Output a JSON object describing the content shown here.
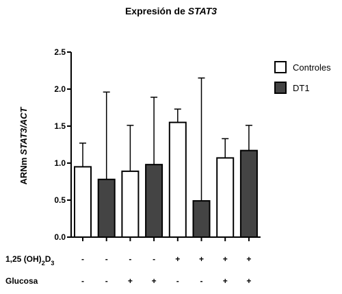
{
  "chart_data": {
    "type": "bar",
    "title": {
      "prefix": "Expresión de ",
      "gene": "STAT3"
    },
    "ylabel": {
      "prefix": "ARNm ",
      "italic": "STAT3/ACT"
    },
    "ylim": [
      0,
      2.5
    ],
    "yticks": [
      "0.0",
      "0.5",
      "1.0",
      "1.5",
      "2.0",
      "2.5"
    ],
    "series_order": [
      "Controles",
      "DT1",
      "Controles",
      "DT1",
      "Controles",
      "DT1",
      "Controles",
      "DT1"
    ],
    "values": [
      0.95,
      0.78,
      0.89,
      0.98,
      1.55,
      0.49,
      1.07,
      1.17
    ],
    "errors": [
      0.32,
      1.18,
      0.62,
      0.91,
      0.18,
      1.66,
      0.26,
      0.34
    ],
    "legend": [
      {
        "name": "Controles",
        "color": "#ffffff"
      },
      {
        "name": "DT1",
        "color": "#444444"
      }
    ],
    "condition_rows": [
      {
        "label_html": "1,25 (OH)<tspan baseline-shift='sub' font-size='9'>2</tspan>D<tspan baseline-shift='sub' font-size='9'>3</tspan>",
        "label_text": "1,25 (OH)2D3",
        "values": [
          "-",
          "-",
          "-",
          "-",
          "+",
          "+",
          "+",
          "+"
        ]
      },
      {
        "label_text": "Glucosa",
        "values": [
          "-",
          "-",
          "+",
          "+",
          "-",
          "-",
          "+",
          "+"
        ]
      }
    ]
  }
}
